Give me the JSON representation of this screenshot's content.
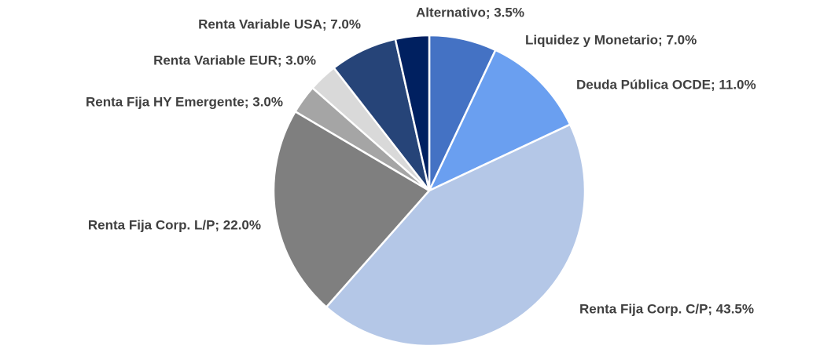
{
  "chart_data": {
    "type": "pie",
    "values": [
      7.0,
      11.0,
      43.5,
      22.0,
      3.0,
      3.0,
      7.0,
      3.5
    ],
    "value_labels": [
      "Liquidez y Monetario; 7.0%",
      "Deuda Pública OCDE; 11.0%",
      "Renta Fija Corp. C/P; 43.5%",
      "Renta Fija Corp. L/P; 22.0%",
      "Renta Fija HY Emergente; 3.0%",
      "Renta Variable EUR; 3.0%",
      "Renta Variable USA; 7.0%",
      "Alternativo; 3.5%"
    ],
    "colors": [
      "#4472c4",
      "#6a9ff0",
      "#b4c7e7",
      "#7f7f7f",
      "#a5a5a5",
      "#d9d9d9",
      "#264478",
      "#002060"
    ]
  }
}
